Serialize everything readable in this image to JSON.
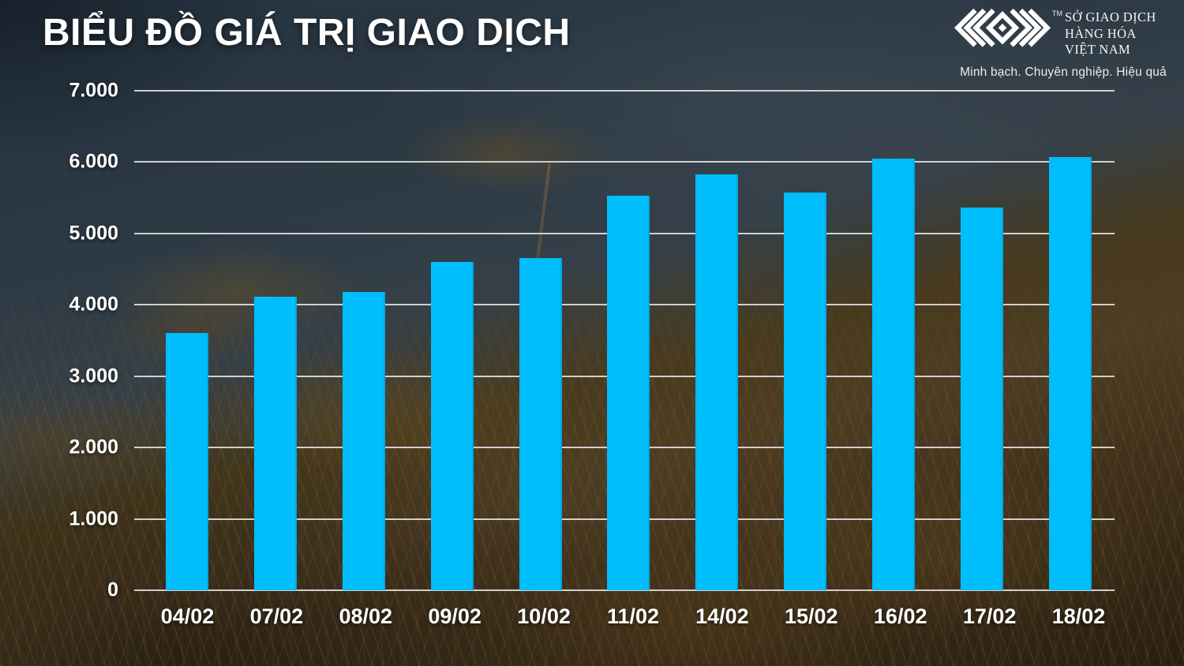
{
  "page_title": "BIỂU ĐỒ GIÁ TRỊ GIAO DỊCH",
  "brand": {
    "logo_icon": "mxv-chevron-diamond-mark",
    "trademark": "TM",
    "name_lines": [
      "SỞ GIAO DỊCH",
      "HÀNG HÓA",
      "VIỆT NAM"
    ],
    "tagline": "Minh bạch. Chuyên nghiệp. Hiệu quả"
  },
  "chart_data": {
    "type": "bar",
    "title": "BIỂU ĐỒ GIÁ TRỊ GIAO DỊCH",
    "categories": [
      "04/02",
      "07/02",
      "08/02",
      "09/02",
      "10/02",
      "11/02",
      "14/02",
      "15/02",
      "16/02",
      "17/02",
      "18/02"
    ],
    "values": [
      3610,
      4115,
      4180,
      4600,
      4655,
      5530,
      5830,
      5575,
      6050,
      5365,
      6070
    ],
    "xlabel": "",
    "ylabel": "",
    "ylim": [
      0,
      7000
    ],
    "y_tick_labels": [
      "7.000",
      "6.000",
      "5.000",
      "4.000",
      "3.000",
      "2.000",
      "1.000",
      "0"
    ],
    "grid": true,
    "legend_position": "none",
    "bar_color": "#00bdfc",
    "gridline_color": "#dcdcdc",
    "label_color": "#ffffff"
  }
}
